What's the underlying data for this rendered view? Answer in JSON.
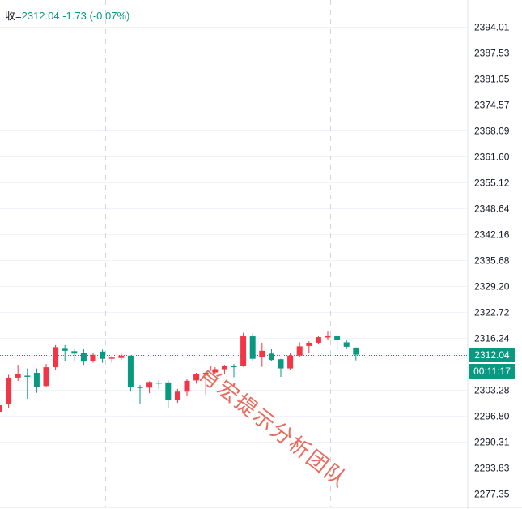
{
  "legend": {
    "label": "收=",
    "close": "2312.04",
    "change": "-1.73",
    "change_pct": "(-0.07%)"
  },
  "price_tag": {
    "price": "2312.04",
    "countdown": "00:11:17"
  },
  "watermark": "肖宏提示分析团队",
  "colors": {
    "up": "#F23645",
    "down": "#089981",
    "grid": "#F0F3FA",
    "axis_text": "#131722"
  },
  "chart_data": {
    "type": "candlestick",
    "title": "",
    "y_axis_ticks": [
      "2394.01",
      "2387.53",
      "2381.05",
      "2374.57",
      "2368.09",
      "2361.60",
      "2355.12",
      "2348.64",
      "2342.16",
      "2335.68",
      "2329.20",
      "2322.72",
      "2316.24",
      "2312.04",
      "2303.28",
      "2296.80",
      "2290.31",
      "2283.83",
      "2277.35"
    ],
    "ylim": [
      2275.2,
      2397.8
    ],
    "last_price": 2312.04,
    "grid": true,
    "candles": [
      {
        "o": 2297.8,
        "h": 2302.6,
        "l": 2296.5,
        "c": 2299.4
      },
      {
        "o": 2299.6,
        "h": 2307.0,
        "l": 2298.8,
        "c": 2306.3
      },
      {
        "o": 2306.3,
        "h": 2309.5,
        "l": 2305.5,
        "c": 2307.3
      },
      {
        "o": 2306.8,
        "h": 2308.6,
        "l": 2301.0,
        "c": 2306.5
      },
      {
        "o": 2307.5,
        "h": 2308.6,
        "l": 2302.5,
        "c": 2304.0
      },
      {
        "o": 2304.2,
        "h": 2309.7,
        "l": 2304.0,
        "c": 2308.9
      },
      {
        "o": 2308.9,
        "h": 2314.4,
        "l": 2308.3,
        "c": 2313.9
      },
      {
        "o": 2313.7,
        "h": 2314.4,
        "l": 2310.5,
        "c": 2313.0
      },
      {
        "o": 2312.9,
        "h": 2313.5,
        "l": 2310.5,
        "c": 2312.3
      },
      {
        "o": 2312.4,
        "h": 2313.5,
        "l": 2309.5,
        "c": 2310.3
      },
      {
        "o": 2310.5,
        "h": 2312.5,
        "l": 2310.0,
        "c": 2312.0
      },
      {
        "o": 2312.8,
        "h": 2313.3,
        "l": 2310.0,
        "c": 2311.0
      },
      {
        "o": 2311.0,
        "h": 2311.8,
        "l": 2310.0,
        "c": 2311.3
      },
      {
        "o": 2311.2,
        "h": 2312.5,
        "l": 2310.7,
        "c": 2311.8
      },
      {
        "o": 2311.8,
        "h": 2311.8,
        "l": 2302.8,
        "c": 2304.0
      },
      {
        "o": 2304.0,
        "h": 2304.5,
        "l": 2299.8,
        "c": 2303.7
      },
      {
        "o": 2303.8,
        "h": 2305.4,
        "l": 2302.4,
        "c": 2305.2
      },
      {
        "o": 2305.0,
        "h": 2305.6,
        "l": 2303.5,
        "c": 2304.9
      },
      {
        "o": 2305.1,
        "h": 2305.6,
        "l": 2298.6,
        "c": 2300.7
      },
      {
        "o": 2300.8,
        "h": 2303.5,
        "l": 2300.0,
        "c": 2302.8
      },
      {
        "o": 2302.8,
        "h": 2306.0,
        "l": 2301.6,
        "c": 2305.5
      },
      {
        "o": 2305.6,
        "h": 2307.5,
        "l": 2304.8,
        "c": 2307.1
      },
      {
        "o": 2307.3,
        "h": 2307.8,
        "l": 2302.0,
        "c": 2307.5
      },
      {
        "o": 2307.6,
        "h": 2308.9,
        "l": 2307.2,
        "c": 2308.4
      },
      {
        "o": 2308.4,
        "h": 2309.5,
        "l": 2307.3,
        "c": 2309.2
      },
      {
        "o": 2309.2,
        "h": 2309.7,
        "l": 2306.4,
        "c": 2308.9
      },
      {
        "o": 2309.3,
        "h": 2317.5,
        "l": 2309.0,
        "c": 2316.6
      },
      {
        "o": 2316.6,
        "h": 2317.3,
        "l": 2310.5,
        "c": 2311.0
      },
      {
        "o": 2311.4,
        "h": 2315.0,
        "l": 2309.0,
        "c": 2313.0
      },
      {
        "o": 2312.3,
        "h": 2313.5,
        "l": 2310.5,
        "c": 2310.7
      },
      {
        "o": 2310.9,
        "h": 2311.0,
        "l": 2306.5,
        "c": 2308.6
      },
      {
        "o": 2308.6,
        "h": 2312.4,
        "l": 2308.2,
        "c": 2311.8
      },
      {
        "o": 2311.8,
        "h": 2315.1,
        "l": 2311.5,
        "c": 2314.1
      },
      {
        "o": 2314.2,
        "h": 2315.4,
        "l": 2312.3,
        "c": 2315.0
      },
      {
        "o": 2315.0,
        "h": 2316.7,
        "l": 2314.6,
        "c": 2316.4
      },
      {
        "o": 2316.3,
        "h": 2317.8,
        "l": 2315.8,
        "c": 2316.6
      },
      {
        "o": 2316.6,
        "h": 2317.1,
        "l": 2313.0,
        "c": 2315.8
      },
      {
        "o": 2315.1,
        "h": 2315.6,
        "l": 2313.6,
        "c": 2314.0
      },
      {
        "o": 2313.8,
        "h": 2313.8,
        "l": 2310.6,
        "c": 2312.04
      }
    ]
  }
}
